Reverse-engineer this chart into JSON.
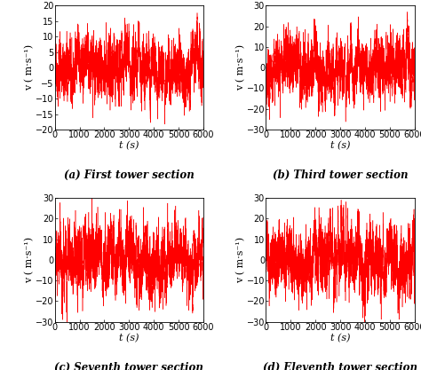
{
  "subplots": [
    {
      "label": "(a) First tower section",
      "ylim": [
        -20,
        20
      ],
      "yticks": [
        -20,
        -15,
        -10,
        -5,
        0,
        5,
        10,
        15,
        20
      ],
      "std": 5.0,
      "seed": 1
    },
    {
      "label": "(b) Third tower section",
      "ylim": [
        -30,
        30
      ],
      "yticks": [
        -30,
        -20,
        -10,
        0,
        10,
        20,
        30
      ],
      "std": 7.5,
      "seed": 2
    },
    {
      "label": "(c) Seventh tower section",
      "ylim": [
        -30,
        30
      ],
      "yticks": [
        -30,
        -20,
        -10,
        0,
        10,
        20,
        30
      ],
      "std": 8.5,
      "seed": 3
    },
    {
      "label": "(d) Eleventh tower section",
      "ylim": [
        -30,
        30
      ],
      "yticks": [
        -30,
        -20,
        -10,
        0,
        10,
        20,
        30
      ],
      "std": 8.5,
      "seed": 4
    }
  ],
  "xlim": [
    0,
    6000
  ],
  "xticks": [
    0,
    1000,
    2000,
    3000,
    4000,
    5000,
    6000
  ],
  "xlabel": "t (s)",
  "ylabel": "v ( m·s⁻¹)",
  "line_color": "#FF0000",
  "line_width": 0.35,
  "dt": 0.5,
  "n_points": 12001,
  "background_color": "#ffffff",
  "label_fontsize": 8.5,
  "tick_fontsize": 7,
  "axis_label_fontsize": 8
}
